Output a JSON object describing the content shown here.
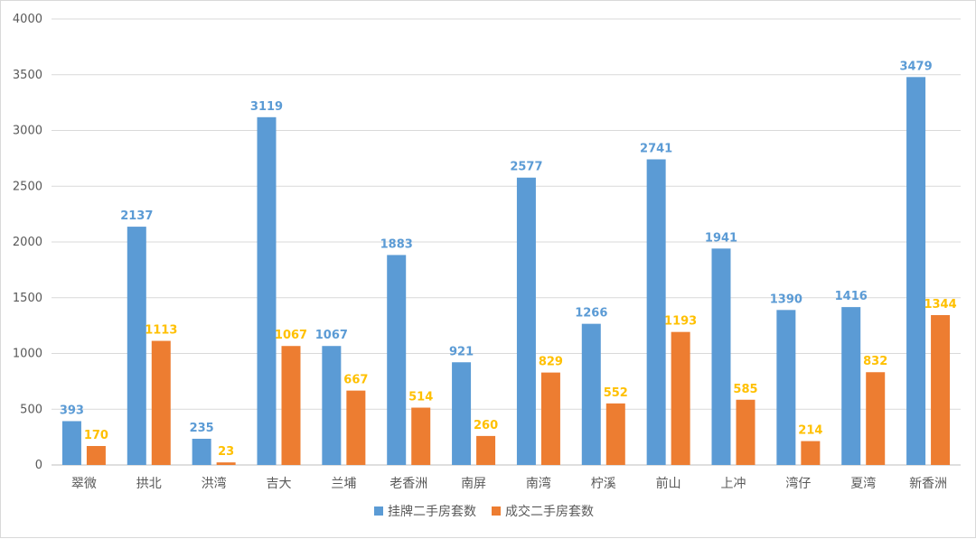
{
  "chart_data": {
    "type": "bar",
    "title": "",
    "xlabel": "",
    "ylabel": "",
    "ylim": [
      0,
      4000
    ],
    "yticks": [
      0,
      500,
      1000,
      1500,
      2000,
      2500,
      3000,
      3500,
      4000
    ],
    "grid": true,
    "legend_position": "bottom",
    "categories": [
      "翠微",
      "拱北",
      "洪湾",
      "吉大",
      "兰埔",
      "老香洲",
      "南屏",
      "南湾",
      "柠溪",
      "前山",
      "上冲",
      "湾仔",
      "夏湾",
      "新香洲"
    ],
    "series": [
      {
        "name": "挂牌二手房套数",
        "color": "#5b9bd5",
        "label_color": "#5b9bd5",
        "values": [
          393,
          2137,
          235,
          3119,
          1067,
          1883,
          921,
          2577,
          1266,
          2741,
          1941,
          1390,
          1416,
          3479
        ]
      },
      {
        "name": "成交二手房套数",
        "color": "#ed7d31",
        "label_color": "#ffc000",
        "values": [
          170,
          1113,
          23,
          1067,
          667,
          514,
          260,
          829,
          552,
          1193,
          585,
          214,
          832,
          1344
        ]
      }
    ]
  }
}
